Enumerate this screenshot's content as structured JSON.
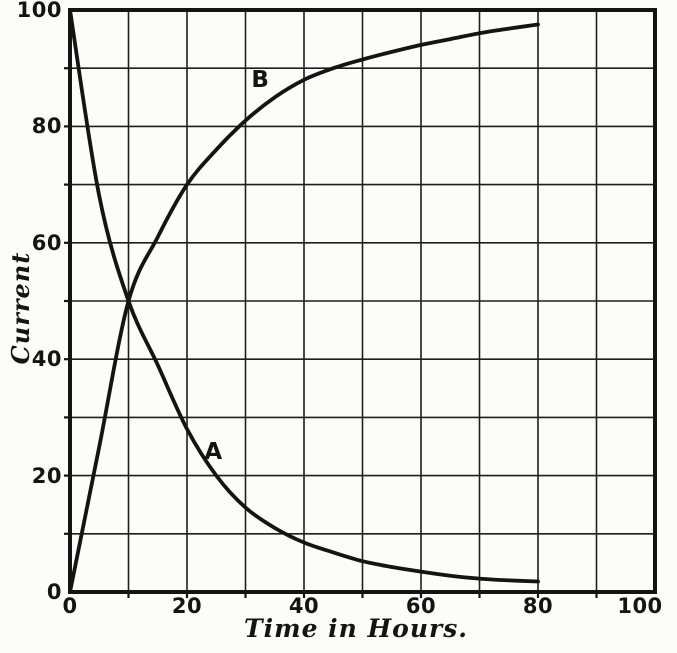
{
  "figure": {
    "paper_color": "#fcfcf9",
    "ink_color": "#141414",
    "grid_color": "#1e1e1e"
  },
  "chart_data": {
    "type": "line",
    "title": "",
    "xlabel": "Time in Hours.",
    "ylabel": "Current",
    "xlim": [
      0,
      100
    ],
    "ylim": [
      0,
      100
    ],
    "x_ticks": [
      0,
      20,
      40,
      60,
      80,
      100
    ],
    "y_ticks": [
      0,
      20,
      40,
      60,
      80,
      100
    ],
    "grid": "on",
    "grid_step": 10,
    "legend_position": "none",
    "series": [
      {
        "name": "A",
        "label_pos": {
          "x": 24.5,
          "y": 24
        },
        "points": [
          [
            0,
            100
          ],
          [
            5,
            68
          ],
          [
            10,
            50
          ],
          [
            15,
            39
          ],
          [
            20,
            28
          ],
          [
            25,
            20
          ],
          [
            30,
            14.5
          ],
          [
            35,
            11
          ],
          [
            40,
            8.5
          ],
          [
            45,
            6.8
          ],
          [
            50,
            5.3
          ],
          [
            55,
            4.3
          ],
          [
            60,
            3.5
          ],
          [
            65,
            2.8
          ],
          [
            70,
            2.3
          ],
          [
            75,
            2
          ],
          [
            80,
            1.8
          ]
        ]
      },
      {
        "name": "B",
        "label_pos": {
          "x": 32.5,
          "y": 88
        },
        "points": [
          [
            0,
            0
          ],
          [
            5,
            25
          ],
          [
            10,
            50
          ],
          [
            15,
            61
          ],
          [
            20,
            70
          ],
          [
            25,
            76
          ],
          [
            30,
            81
          ],
          [
            35,
            85
          ],
          [
            40,
            88
          ],
          [
            45,
            90
          ],
          [
            50,
            91.5
          ],
          [
            55,
            92.8
          ],
          [
            60,
            94
          ],
          [
            65,
            95
          ],
          [
            70,
            96
          ],
          [
            75,
            96.8
          ],
          [
            80,
            97.5
          ]
        ]
      }
    ]
  }
}
